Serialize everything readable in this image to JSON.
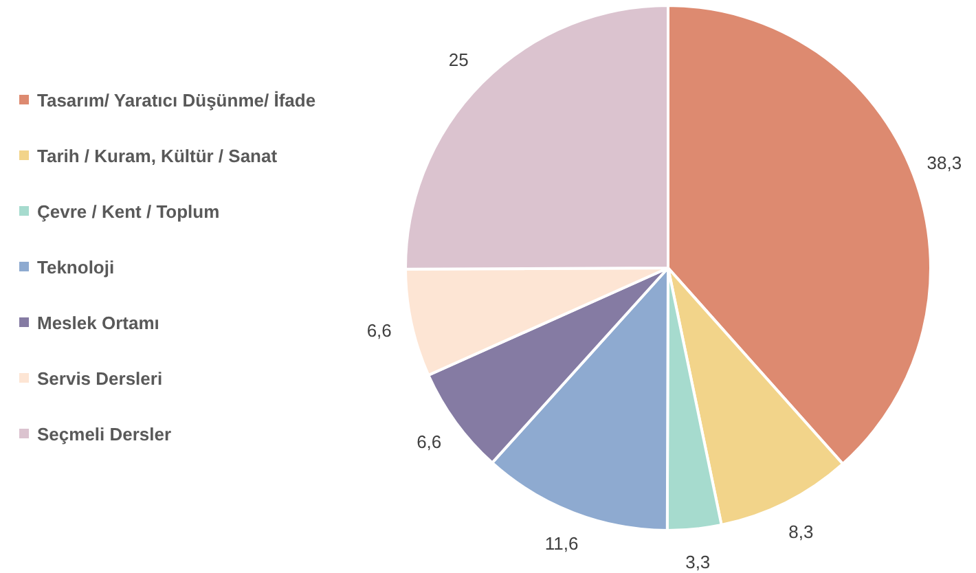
{
  "chart_data": {
    "type": "pie",
    "categories": [
      "Tasarım/ Yaratıcı Düşünme/ İfade",
      "Tarih / Kuram, Kültür / Sanat",
      "Çevre / Kent / Toplum",
      "Teknoloji",
      "Meslek Ortamı",
      "Servis Dersleri",
      "Seçmeli Dersler"
    ],
    "values": [
      38.3,
      8.3,
      3.3,
      11.6,
      6.6,
      6.6,
      25
    ],
    "value_labels": [
      "38,3",
      "8,3",
      "3,3",
      "11,6",
      "6,6",
      "6,6",
      "25"
    ],
    "colors": [
      "#dd8a70",
      "#f2d48a",
      "#a6dbce",
      "#8eaad0",
      "#857ba3",
      "#fde5d4",
      "#dbc3cf"
    ],
    "legend": "left"
  }
}
